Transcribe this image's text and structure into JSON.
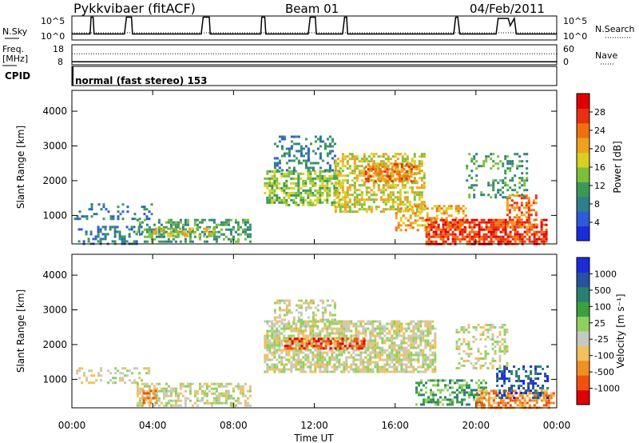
{
  "header": {
    "station": "Pykkvibaer (fitACF)",
    "beam": "Beam 01",
    "date": "04/Feb/2011"
  },
  "chart_data": [
    {
      "type": "line",
      "panel": "noise",
      "left_label": "N.Sky",
      "right_label": "N.Search",
      "left_ticks": [
        "10^5",
        "10^0"
      ],
      "right_ticks": [
        "10^5",
        "10^0"
      ],
      "xlim": [
        "00:00",
        "24:00"
      ],
      "series": [
        {
          "name": "N.Sky",
          "style": "solid",
          "x": [
            0,
            0.9,
            0.95,
            1.05,
            1.1,
            2.6,
            2.7,
            2.95,
            3.0,
            6.4,
            6.5,
            6.8,
            6.85,
            9.35,
            9.4,
            9.55,
            9.6,
            11.7,
            11.8,
            12.05,
            12.1,
            13.4,
            13.5,
            13.6,
            13.65,
            18.9,
            19.0,
            19.1,
            19.2,
            21.0,
            21.1,
            21.6,
            21.7,
            21.9,
            22.0,
            24
          ],
          "y_frac": [
            0.25,
            0.25,
            0.95,
            0.95,
            0.25,
            0.25,
            0.95,
            0.95,
            0.25,
            0.25,
            0.95,
            0.95,
            0.25,
            0.25,
            0.95,
            0.95,
            0.25,
            0.25,
            0.95,
            0.95,
            0.25,
            0.25,
            0.95,
            0.95,
            0.25,
            0.25,
            0.95,
            0.95,
            0.25,
            0.25,
            0.9,
            0.9,
            0.6,
            0.9,
            0.25,
            0.25
          ]
        },
        {
          "name": "N.Search",
          "style": "dotted",
          "constant_frac": 0.3
        }
      ]
    },
    {
      "type": "line",
      "panel": "frequency",
      "left_label_top": "Freq.",
      "left_label_bottom": "[MHz]",
      "right_label": "Nave",
      "left_ticks": [
        "18",
        "8"
      ],
      "right_ticks": [
        "60",
        "0"
      ],
      "series": [
        {
          "name": "Freq.",
          "style": "solid",
          "constant_frac": 0.15
        },
        {
          "name": "Nave",
          "style": "dotted",
          "constant_frac": 0.55
        }
      ]
    },
    {
      "type": "table",
      "panel": "cpid",
      "label": "CPID",
      "text": "normal (fast stereo) 153"
    },
    {
      "type": "heatmap",
      "panel": "power",
      "ylabel": "Slant Range [km]",
      "yticks": [
        1000,
        2000,
        3000,
        4000
      ],
      "ylim": [
        180,
        4600
      ],
      "xlim": [
        0,
        24
      ],
      "colorbar": {
        "label": "Power [dB]",
        "ticks": [
          "4",
          "8",
          "12",
          "16",
          "20",
          "24",
          "28"
        ],
        "colors": [
          "#1a2bd8",
          "#2f5ad9",
          "#2f7f8a",
          "#3a9a55",
          "#7dbf3a",
          "#d8d020",
          "#f0a020",
          "#f07010",
          "#e83010",
          "#e00000"
        ]
      },
      "regions": [
        {
          "x": [
            0.1,
            4.0
          ],
          "y": [
            900,
            1350
          ],
          "level": 2,
          "density": 0.28
        },
        {
          "x": [
            0.3,
            3.5
          ],
          "y": [
            200,
            700
          ],
          "level": 2,
          "density": 0.4
        },
        {
          "x": [
            3.2,
            8.8
          ],
          "y": [
            250,
            900
          ],
          "level": 3,
          "density": 0.45
        },
        {
          "x": [
            4.0,
            7.0
          ],
          "y": [
            400,
            650
          ],
          "level": 5,
          "density": 0.5
        },
        {
          "x": [
            9.5,
            13.2
          ],
          "y": [
            1300,
            2300
          ],
          "level": 4,
          "density": 0.6
        },
        {
          "x": [
            10.0,
            13.0
          ],
          "y": [
            2300,
            3300
          ],
          "level": 2,
          "density": 0.35
        },
        {
          "x": [
            13.0,
            17.5
          ],
          "y": [
            1100,
            2800
          ],
          "level": 5,
          "density": 0.55
        },
        {
          "x": [
            14.5,
            17.0
          ],
          "y": [
            2000,
            2500
          ],
          "level": 7,
          "density": 0.5
        },
        {
          "x": [
            16.0,
            19.5
          ],
          "y": [
            600,
            1300
          ],
          "level": 6,
          "density": 0.45
        },
        {
          "x": [
            17.5,
            23.5
          ],
          "y": [
            200,
            900
          ],
          "level": 8,
          "density": 0.7
        },
        {
          "x": [
            21.5,
            23.0
          ],
          "y": [
            700,
            1600
          ],
          "level": 7,
          "density": 0.5
        },
        {
          "x": [
            19.5,
            22.5
          ],
          "y": [
            1500,
            2800
          ],
          "level": 3,
          "density": 0.25
        }
      ]
    },
    {
      "type": "heatmap",
      "panel": "velocity",
      "xlabel": "Time UT",
      "ylabel": "Slant Range [km]",
      "xticks": [
        "00:00",
        "04:00",
        "08:00",
        "12:00",
        "16:00",
        "20:00",
        "00:00"
      ],
      "yticks": [
        1000,
        2000,
        3000,
        4000
      ],
      "ylim": [
        180,
        4600
      ],
      "xlim": [
        0,
        24
      ],
      "colorbar": {
        "label": "Velocity [m s⁻¹]",
        "ticks": [
          "-1000",
          "-500",
          "-100",
          "-25",
          "25",
          "100",
          "500",
          "1000"
        ],
        "colors": [
          "#e00000",
          "#f05010",
          "#f09020",
          "#f0c060",
          "#c8c8c0",
          "#90d060",
          "#3aa040",
          "#2a8070",
          "#2a50a0",
          "#1a2bd8"
        ]
      },
      "regions": [
        {
          "x": [
            0.2,
            3.8
          ],
          "y": [
            900,
            1350
          ],
          "level": 4,
          "density": 0.3
        },
        {
          "x": [
            3.2,
            8.8
          ],
          "y": [
            250,
            900
          ],
          "level": 4,
          "density": 0.55
        },
        {
          "x": [
            3.5,
            4.2
          ],
          "y": [
            300,
            700
          ],
          "level": 2,
          "density": 0.6
        },
        {
          "x": [
            9.5,
            18.0
          ],
          "y": [
            1200,
            2700
          ],
          "level": 4,
          "density": 0.7
        },
        {
          "x": [
            10.0,
            13.0
          ],
          "y": [
            2700,
            3300
          ],
          "level": 4,
          "density": 0.35
        },
        {
          "x": [
            10.5,
            14.5
          ],
          "y": [
            1900,
            2200
          ],
          "level": 1,
          "density": 0.6
        },
        {
          "x": [
            17.0,
            20.5
          ],
          "y": [
            300,
            1000
          ],
          "level": 6,
          "density": 0.5
        },
        {
          "x": [
            20.0,
            23.8
          ],
          "y": [
            200,
            700
          ],
          "level": 2,
          "density": 0.65
        },
        {
          "x": [
            21.0,
            23.5
          ],
          "y": [
            500,
            1400
          ],
          "level": 8,
          "density": 0.4
        },
        {
          "x": [
            19.0,
            21.5
          ],
          "y": [
            1300,
            2600
          ],
          "level": 4,
          "density": 0.35
        }
      ]
    }
  ]
}
